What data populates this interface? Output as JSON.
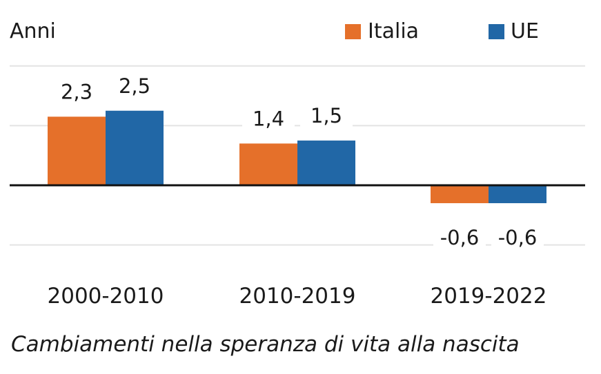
{
  "chart_data": {
    "type": "bar",
    "ylabel": "Anni",
    "categories": [
      "2000-2010",
      "2010-2019",
      "2019-2022"
    ],
    "series": [
      {
        "name": "Italia",
        "values": [
          2.3,
          1.4,
          -0.6
        ],
        "labels": [
          "2,3",
          "1,4",
          "-0,6"
        ],
        "color": "#E5702A"
      },
      {
        "name": "UE",
        "values": [
          2.5,
          1.5,
          -0.6
        ],
        "labels": [
          "2,5",
          "1,5",
          "-0,6"
        ],
        "color": "#2167A6"
      }
    ],
    "ylim": [
      -2,
      4
    ],
    "grid": true,
    "grid_step": 2,
    "legend": "top-right",
    "caption": "Cambiamenti nella speranza di vita alla nascita"
  }
}
